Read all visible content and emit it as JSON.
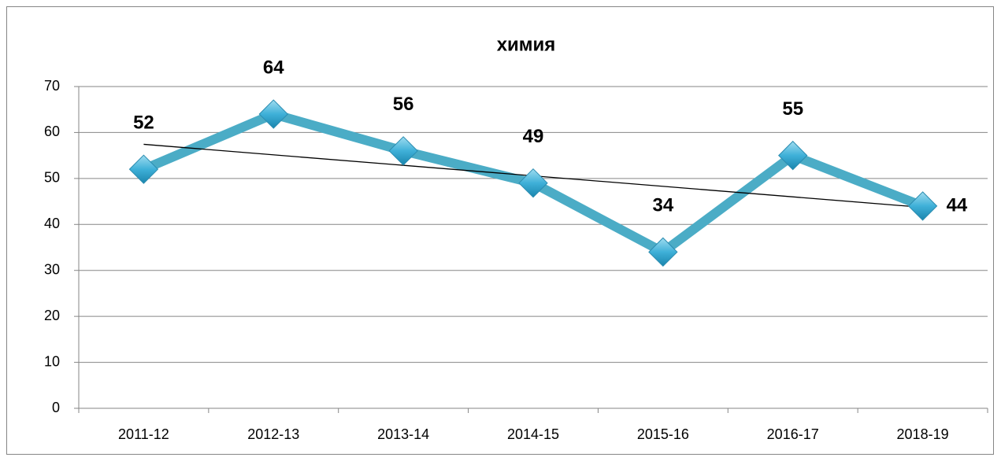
{
  "chart_data": {
    "type": "line",
    "title": "химия",
    "categories": [
      "2011-12",
      "2012-13",
      "2013-14",
      "2014-15",
      "2015-16",
      "2016-17",
      "2018-19"
    ],
    "series": [
      {
        "name": "химия",
        "color": "#4bacc6",
        "values": [
          52,
          64,
          56,
          49,
          34,
          55,
          44
        ]
      }
    ],
    "ylim": [
      0,
      70
    ],
    "yticks": [
      0,
      10,
      20,
      30,
      40,
      50,
      60,
      70
    ],
    "grid": true,
    "trendline": true,
    "legend": false,
    "marker": "diamond"
  }
}
